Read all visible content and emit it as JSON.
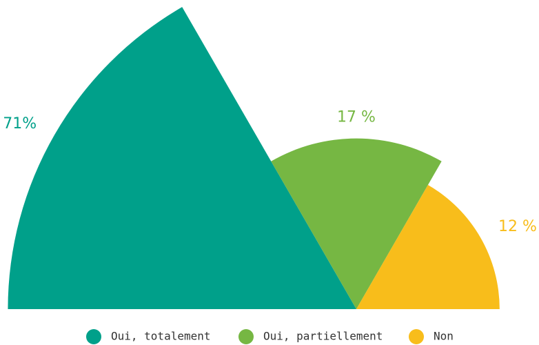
{
  "chart_data": {
    "type": "rose",
    "categories": [
      "Oui, totalement",
      "Oui, partiellement",
      "Non"
    ],
    "values": [
      71,
      17,
      12
    ],
    "value_labels": [
      "71%",
      "17 %",
      "12 %"
    ],
    "colors": [
      "#00a08a",
      "#76b743",
      "#f8bd1b"
    ],
    "legend": "bottom"
  }
}
